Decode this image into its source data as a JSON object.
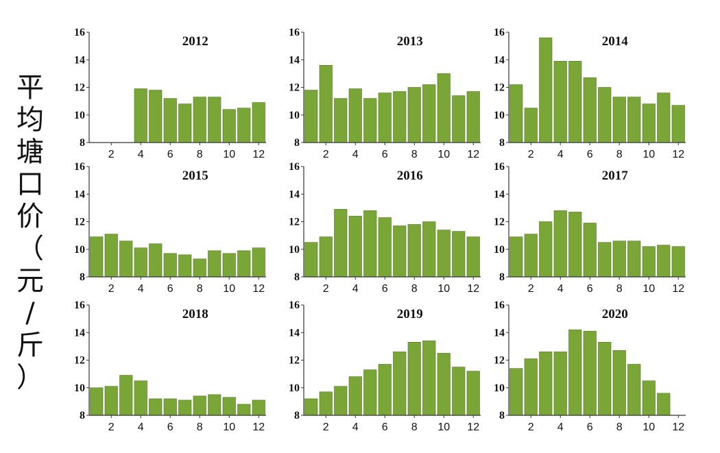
{
  "ylabel": "平均塘口价（元/斤）",
  "chart_data": [
    {
      "type": "bar",
      "title": "2012",
      "x": [
        4,
        5,
        6,
        7,
        8,
        9,
        10,
        11,
        12
      ],
      "values": [
        11.9,
        11.8,
        11.2,
        10.8,
        11.3,
        11.3,
        10.4,
        10.5,
        10.9
      ],
      "ylim": [
        8,
        16
      ],
      "yticks": [
        8,
        10,
        12,
        14,
        16
      ],
      "xticks": [
        2,
        4,
        6,
        8,
        10,
        12
      ],
      "xlabel": "",
      "ylabel": ""
    },
    {
      "type": "bar",
      "title": "2013",
      "x": [
        1,
        2,
        3,
        4,
        5,
        6,
        7,
        8,
        9,
        10,
        11,
        12
      ],
      "values": [
        11.8,
        13.6,
        11.2,
        11.9,
        11.2,
        11.6,
        11.7,
        12.0,
        12.2,
        13.0,
        11.4,
        11.7
      ],
      "ylim": [
        8,
        16
      ],
      "yticks": [
        8,
        10,
        12,
        14,
        16
      ],
      "xticks": [
        2,
        4,
        6,
        8,
        10,
        12
      ],
      "xlabel": "",
      "ylabel": ""
    },
    {
      "type": "bar",
      "title": "2014",
      "x": [
        1,
        2,
        3,
        4,
        5,
        6,
        7,
        8,
        9,
        10,
        11,
        12
      ],
      "values": [
        12.2,
        10.5,
        15.6,
        13.9,
        13.9,
        12.7,
        12.0,
        11.3,
        11.3,
        10.8,
        11.6,
        10.7
      ],
      "ylim": [
        8,
        16
      ],
      "yticks": [
        8,
        10,
        12,
        14,
        16
      ],
      "xticks": [
        2,
        4,
        6,
        8,
        10,
        12
      ],
      "xlabel": "",
      "ylabel": ""
    },
    {
      "type": "bar",
      "title": "2015",
      "x": [
        1,
        2,
        3,
        4,
        5,
        6,
        7,
        8,
        9,
        10,
        11,
        12
      ],
      "values": [
        10.9,
        11.1,
        10.6,
        10.1,
        10.4,
        9.7,
        9.6,
        9.3,
        9.9,
        9.7,
        9.9,
        10.1
      ],
      "ylim": [
        8,
        16
      ],
      "yticks": [
        8,
        10,
        12,
        14,
        16
      ],
      "xticks": [
        2,
        4,
        6,
        8,
        10,
        12
      ],
      "xlabel": "",
      "ylabel": ""
    },
    {
      "type": "bar",
      "title": "2016",
      "x": [
        1,
        2,
        3,
        4,
        5,
        6,
        7,
        8,
        9,
        10,
        11,
        12
      ],
      "values": [
        10.5,
        10.9,
        12.9,
        12.4,
        12.8,
        12.3,
        11.7,
        11.8,
        12.0,
        11.4,
        11.3,
        10.9
      ],
      "ylim": [
        8,
        16
      ],
      "yticks": [
        8,
        10,
        12,
        14,
        16
      ],
      "xticks": [
        2,
        4,
        6,
        8,
        10,
        12
      ],
      "xlabel": "",
      "ylabel": ""
    },
    {
      "type": "bar",
      "title": "2017",
      "x": [
        1,
        2,
        3,
        4,
        5,
        6,
        7,
        8,
        9,
        10,
        11,
        12
      ],
      "values": [
        10.9,
        11.1,
        12.0,
        12.8,
        12.7,
        11.9,
        10.5,
        10.6,
        10.6,
        10.2,
        10.3,
        10.2
      ],
      "ylim": [
        8,
        16
      ],
      "yticks": [
        8,
        10,
        12,
        14,
        16
      ],
      "xticks": [
        2,
        4,
        6,
        8,
        10,
        12
      ],
      "xlabel": "",
      "ylabel": ""
    },
    {
      "type": "bar",
      "title": "2018",
      "x": [
        1,
        2,
        3,
        4,
        5,
        6,
        7,
        8,
        9,
        10,
        11,
        12
      ],
      "values": [
        10.0,
        10.1,
        10.9,
        10.5,
        9.2,
        9.2,
        9.1,
        9.4,
        9.5,
        9.3,
        8.8,
        9.1
      ],
      "ylim": [
        8,
        16
      ],
      "yticks": [
        8,
        10,
        12,
        14,
        16
      ],
      "xticks": [
        2,
        4,
        6,
        8,
        10,
        12
      ],
      "xlabel": "",
      "ylabel": ""
    },
    {
      "type": "bar",
      "title": "2019",
      "x": [
        1,
        2,
        3,
        4,
        5,
        6,
        7,
        8,
        9,
        10,
        11,
        12
      ],
      "values": [
        9.2,
        9.7,
        10.1,
        10.8,
        11.3,
        11.7,
        12.6,
        13.3,
        13.4,
        12.5,
        11.5,
        11.2
      ],
      "ylim": [
        8,
        16
      ],
      "yticks": [
        8,
        10,
        12,
        14,
        16
      ],
      "xticks": [
        2,
        4,
        6,
        8,
        10,
        12
      ],
      "xlabel": "",
      "ylabel": ""
    },
    {
      "type": "bar",
      "title": "2020",
      "x": [
        1,
        2,
        3,
        4,
        5,
        6,
        7,
        8,
        9,
        10,
        11
      ],
      "values": [
        11.4,
        12.1,
        12.6,
        12.6,
        14.2,
        14.1,
        13.3,
        12.7,
        11.7,
        10.5,
        9.6
      ],
      "ylim": [
        8,
        16
      ],
      "yticks": [
        8,
        10,
        12,
        14,
        16
      ],
      "xticks": [
        2,
        4,
        6,
        8,
        10,
        12
      ],
      "xlabel": "",
      "ylabel": ""
    }
  ],
  "colors": {
    "bar_fill": "#7aa637",
    "bar_stroke": "#4f7320",
    "axis": "#333333",
    "text": "#111111"
  }
}
